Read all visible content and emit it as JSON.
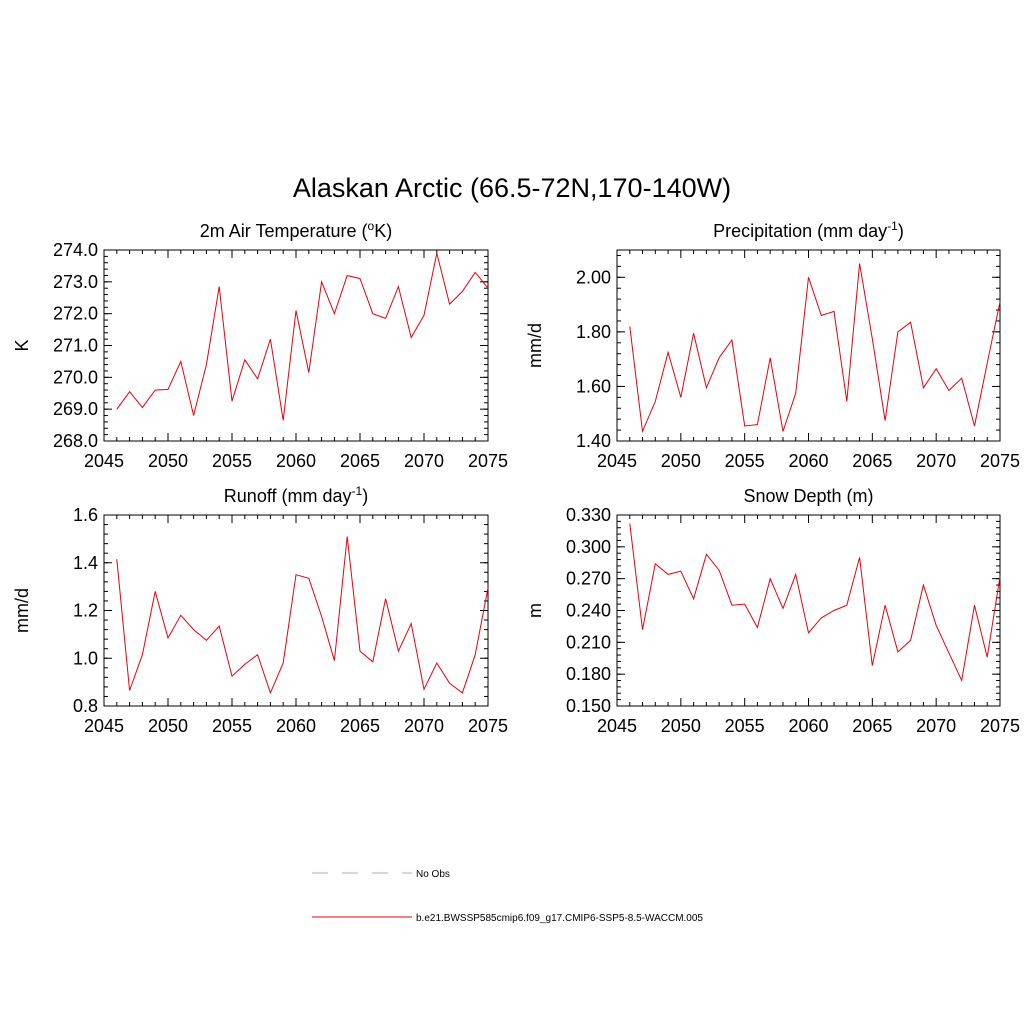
{
  "title": "Alaskan Arctic (66.5-72N,170-140W)",
  "colors": {
    "model_line": "#e8000b",
    "obs_line": "#aaaadd",
    "axis": "#000000"
  },
  "legend": {
    "obs_label": "No Obs",
    "model_label": "b.e21.BWSSP585cmip6.f09_g17.CMIP6-SSP5-8.5-WACCM.005"
  },
  "chart_data": [
    {
      "type": "line",
      "title": "2m Air Temperature (",
      "title_sup": "o",
      "title_after": "K)",
      "ylabel": "K",
      "xlim": [
        2045,
        2075
      ],
      "ylim": [
        268.0,
        274.0
      ],
      "xticks": [
        2045,
        2050,
        2055,
        2060,
        2065,
        2070,
        2075
      ],
      "yticks": [
        "268.0",
        "269.0",
        "270.0",
        "271.0",
        "272.0",
        "273.0",
        "274.0"
      ],
      "x": [
        2046,
        2047,
        2048,
        2049,
        2050,
        2051,
        2052,
        2053,
        2054,
        2055,
        2056,
        2057,
        2058,
        2059,
        2060,
        2061,
        2062,
        2063,
        2064,
        2065,
        2066,
        2067,
        2068,
        2069,
        2070,
        2071,
        2072,
        2073,
        2074,
        2075
      ],
      "series": [
        {
          "values": [
            269.0,
            269.55,
            269.05,
            269.6,
            269.62,
            270.5,
            268.8,
            270.4,
            272.85,
            269.25,
            270.55,
            269.95,
            271.2,
            268.65,
            272.1,
            270.15,
            273.0,
            272.0,
            273.2,
            273.1,
            272.0,
            271.85,
            272.85,
            271.25,
            271.95,
            273.9,
            272.3,
            272.7,
            273.3,
            272.8
          ]
        }
      ]
    },
    {
      "type": "line",
      "title": "Precipitation (mm day",
      "title_sup": "-1",
      "title_after": ")",
      "ylabel": "mm/d",
      "xlim": [
        2045,
        2075
      ],
      "ylim": [
        1.4,
        2.1
      ],
      "xticks": [
        2045,
        2050,
        2055,
        2060,
        2065,
        2070,
        2075
      ],
      "yticks": [
        "1.40",
        "1.60",
        "1.80",
        "2.00"
      ],
      "x": [
        2046,
        2047,
        2048,
        2049,
        2050,
        2051,
        2052,
        2053,
        2054,
        2055,
        2056,
        2057,
        2058,
        2059,
        2060,
        2061,
        2062,
        2063,
        2064,
        2065,
        2066,
        2067,
        2068,
        2069,
        2070,
        2071,
        2072,
        2073,
        2074,
        2075
      ],
      "series": [
        {
          "values": [
            1.82,
            1.435,
            1.545,
            1.725,
            1.56,
            1.795,
            1.595,
            1.705,
            1.77,
            1.455,
            1.46,
            1.705,
            1.435,
            1.575,
            2.0,
            1.86,
            1.875,
            1.545,
            2.05,
            1.775,
            1.475,
            1.8,
            1.835,
            1.595,
            1.665,
            1.585,
            1.63,
            1.455,
            1.685,
            1.91
          ]
        }
      ]
    },
    {
      "type": "line",
      "title": "Runoff (mm day",
      "title_sup": "-1",
      "title_after": ")",
      "ylabel": "mm/d",
      "xlim": [
        2045,
        2075
      ],
      "ylim": [
        0.8,
        1.6
      ],
      "xticks": [
        2045,
        2050,
        2055,
        2060,
        2065,
        2070,
        2075
      ],
      "yticks": [
        "0.8",
        "1.0",
        "1.2",
        "1.4",
        "1.6"
      ],
      "x": [
        2046,
        2047,
        2048,
        2049,
        2050,
        2051,
        2052,
        2053,
        2054,
        2055,
        2056,
        2057,
        2058,
        2059,
        2060,
        2061,
        2062,
        2063,
        2064,
        2065,
        2066,
        2067,
        2068,
        2069,
        2070,
        2071,
        2072,
        2073,
        2074,
        2075
      ],
      "series": [
        {
          "values": [
            1.415,
            0.865,
            1.015,
            1.28,
            1.085,
            1.18,
            1.12,
            1.075,
            1.135,
            0.925,
            0.975,
            1.015,
            0.855,
            0.98,
            1.35,
            1.335,
            1.175,
            0.99,
            1.51,
            1.03,
            0.985,
            1.25,
            1.03,
            1.145,
            0.87,
            0.98,
            0.895,
            0.855,
            1.015,
            1.295
          ]
        }
      ]
    },
    {
      "type": "line",
      "title": "Snow Depth (m)",
      "title_sup": "",
      "title_after": "",
      "ylabel": "m",
      "xlim": [
        2045,
        2075
      ],
      "ylim": [
        0.15,
        0.33
      ],
      "xticks": [
        2045,
        2050,
        2055,
        2060,
        2065,
        2070,
        2075
      ],
      "yticks": [
        "0.150",
        "0.180",
        "0.210",
        "0.240",
        "0.270",
        "0.300",
        "0.330"
      ],
      "x": [
        2046,
        2047,
        2048,
        2049,
        2050,
        2051,
        2052,
        2053,
        2054,
        2055,
        2056,
        2057,
        2058,
        2059,
        2060,
        2061,
        2062,
        2063,
        2064,
        2065,
        2066,
        2067,
        2068,
        2069,
        2070,
        2071,
        2072,
        2073,
        2074,
        2075
      ],
      "series": [
        {
          "values": [
            0.322,
            0.222,
            0.284,
            0.274,
            0.277,
            0.251,
            0.293,
            0.278,
            0.245,
            0.246,
            0.224,
            0.27,
            0.242,
            0.274,
            0.219,
            0.233,
            0.24,
            0.245,
            0.29,
            0.188,
            0.245,
            0.201,
            0.212,
            0.264,
            0.226,
            0.2,
            0.174,
            0.245,
            0.196,
            0.272
          ]
        }
      ]
    }
  ]
}
